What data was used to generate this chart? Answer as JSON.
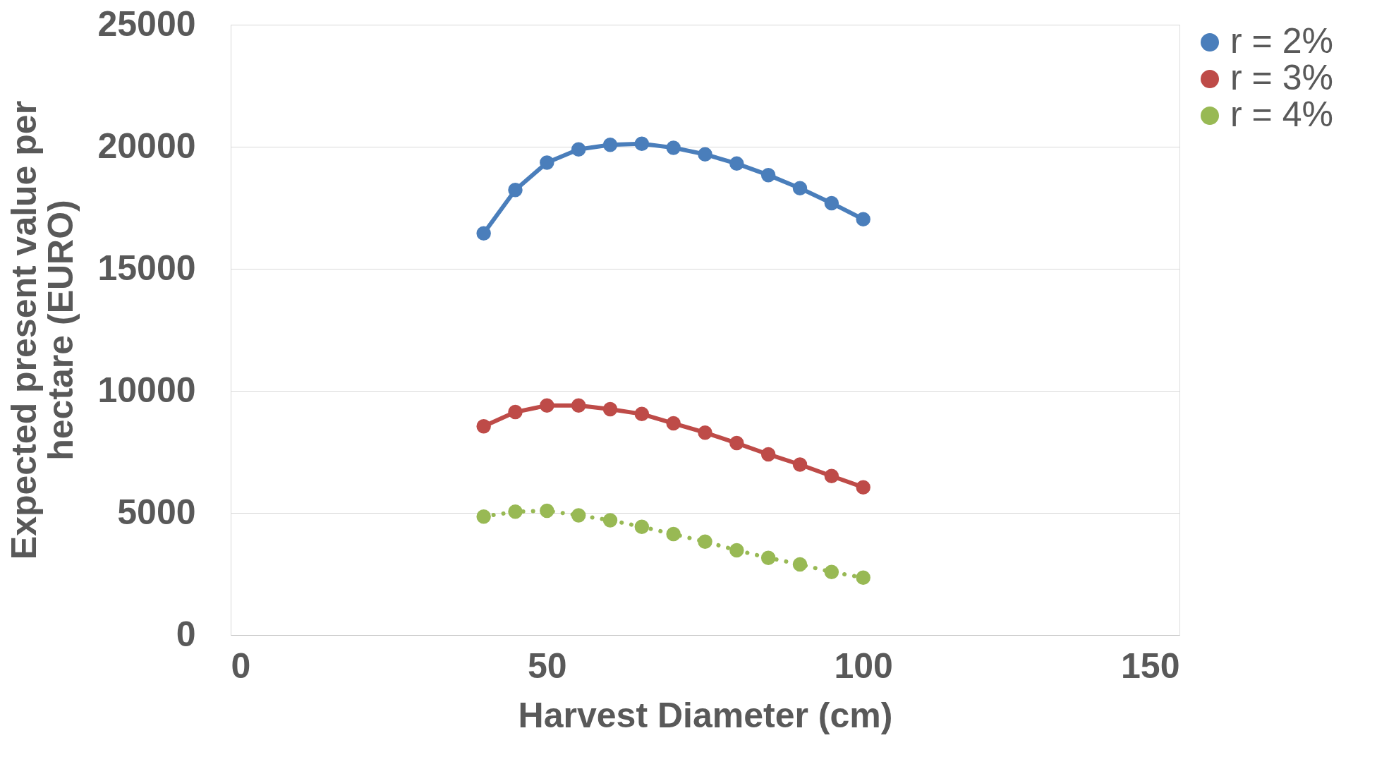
{
  "chart_data": {
    "type": "line",
    "xlabel": "Harvest Diameter (cm)",
    "ylabel": "Expected present value per hectare (EURO)",
    "xlim": [
      0,
      150
    ],
    "xticks": [
      0,
      50,
      100,
      150
    ],
    "ylim": [
      0,
      25000
    ],
    "yticks": [
      0,
      5000,
      10000,
      15000,
      20000,
      25000
    ],
    "grid": "y",
    "legend": "right",
    "marker": "circle",
    "line_style": "solid",
    "x": [
      40,
      45,
      50,
      55,
      60,
      65,
      70,
      75,
      80,
      85,
      90,
      95,
      100
    ],
    "series": [
      {
        "name": "r = 2%",
        "color": "#4a7ebb",
        "values": [
          16450,
          18230,
          19350,
          19890,
          20080,
          20120,
          19960,
          19690,
          19310,
          18840,
          18300,
          17690,
          17030
        ]
      },
      {
        "name": "r = 3%",
        "color": "#be4b48",
        "values": [
          8550,
          9130,
          9400,
          9400,
          9250,
          9050,
          8670,
          8290,
          7860,
          7400,
          6980,
          6510,
          6050
        ]
      },
      {
        "name": "r = 4%",
        "color": "#98b954",
        "line_style": "dotted",
        "values": [
          4850,
          5050,
          5090,
          4900,
          4700,
          4430,
          4130,
          3820,
          3470,
          3160,
          2890,
          2580,
          2350
        ]
      }
    ]
  }
}
